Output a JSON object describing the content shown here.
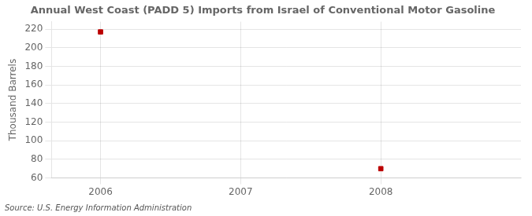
{
  "chart_data": {
    "type": "scatter",
    "title": "Annual West Coast (PADD 5) Imports from Israel of Conventional Motor Gasoline",
    "ylabel": "Thousand Barrels",
    "annotation": "Source: U.S. Energy Information Administration",
    "x": [
      2006,
      2008
    ],
    "values": [
      217,
      70
    ],
    "color": "#bb0000",
    "marker": "square",
    "xlim": [
      2005.65,
      2009.0
    ],
    "ylim": [
      60,
      228
    ],
    "xticks": [
      2006,
      2007,
      2008
    ],
    "yticks": [
      60,
      80,
      100,
      120,
      140,
      160,
      180,
      200,
      220
    ],
    "grid": true
  }
}
